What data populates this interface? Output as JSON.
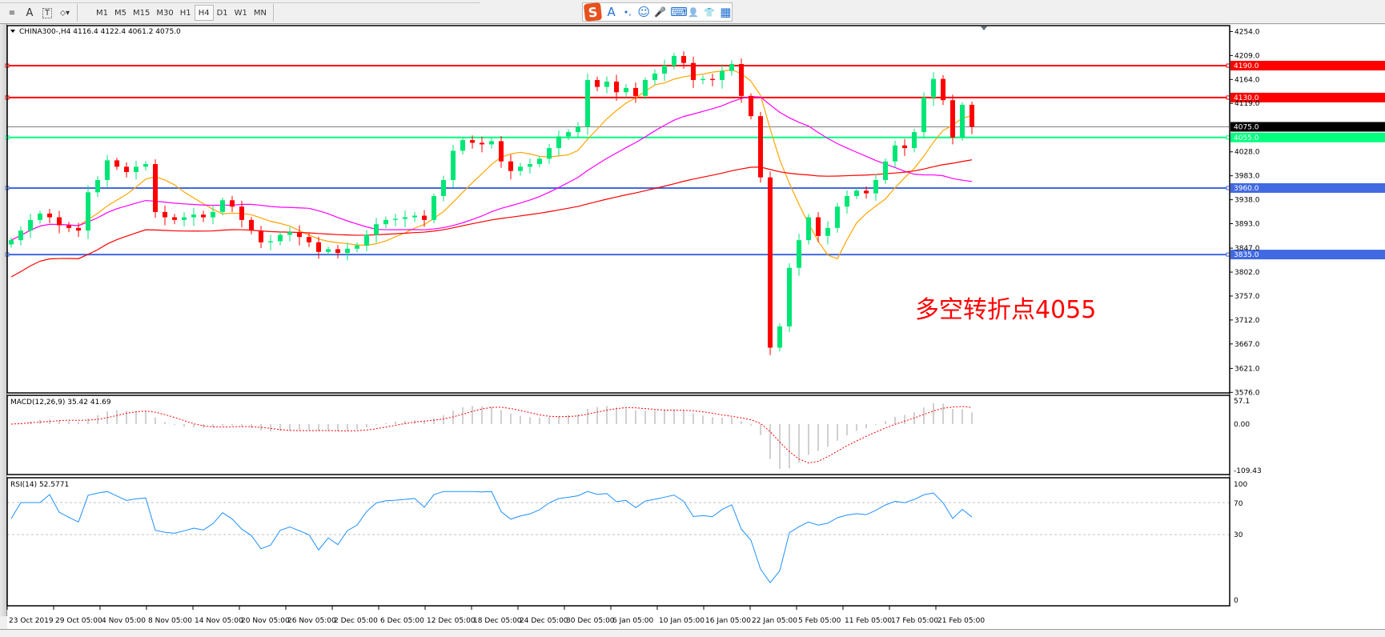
{
  "toolbar": {
    "tools": [
      {
        "name": "fibo-tool",
        "glyph": "≡"
      },
      {
        "name": "text-tool",
        "glyph": "A"
      },
      {
        "name": "text-label-tool",
        "glyph": "T"
      },
      {
        "name": "arrows-tool",
        "glyph": "⬦▾"
      }
    ],
    "timeframes": [
      "M1",
      "M5",
      "M15",
      "M30",
      "H1",
      "H4",
      "D1",
      "W1",
      "MN"
    ],
    "active_timeframe": "H4"
  },
  "ime_bar": {
    "logo": "S",
    "icons": [
      {
        "name": "chinese-mode-icon",
        "glyph": "A"
      },
      {
        "name": "punctuation-icon",
        "glyph": "•,"
      },
      {
        "name": "emoji-icon",
        "glyph": "☺"
      },
      {
        "name": "microphone-icon",
        "glyph": "🎤"
      },
      {
        "name": "keyboard-icon",
        "glyph": "⌨"
      },
      {
        "name": "user-icon",
        "glyph": "👤"
      },
      {
        "name": "skin-icon",
        "glyph": "👕"
      },
      {
        "name": "toolbox-icon",
        "glyph": "▦"
      }
    ]
  },
  "chart": {
    "header": "CHINA300-,H4  4116.4 4122.4 4061.2 4075.0",
    "annotation": "多空转折点4055",
    "annotation_color": "#ff0000"
  },
  "chart_data": {
    "type": "candlestick",
    "symbol": "CHINA300-",
    "timeframe": "H4",
    "last_ohlc": {
      "open": 4116.4,
      "high": 4122.4,
      "low": 4061.2,
      "close": 4075.0
    },
    "closes": [
      3862,
      3880,
      3900,
      3912,
      3905,
      3890,
      3885,
      3880,
      3952,
      3975,
      4012,
      4000,
      3990,
      4000,
      4005,
      3915,
      3905,
      3900,
      3905,
      3910,
      3905,
      3915,
      3937,
      3925,
      3900,
      3880,
      3858,
      3860,
      3872,
      3877,
      3868,
      3858,
      3840,
      3845,
      3838,
      3846,
      3852,
      3872,
      3892,
      3900,
      3902,
      3905,
      3908,
      3900,
      3945,
      3975,
      4030,
      4050,
      4045,
      4042,
      4048,
      4010,
      3992,
      4000,
      4005,
      4015,
      4035,
      4057,
      4065,
      4075,
      4163,
      4150,
      4160,
      4140,
      4148,
      4133,
      4163,
      4175,
      4190,
      4208,
      4195,
      4163,
      4165,
      4163,
      4180,
      4193,
      4133,
      4095,
      3980,
      3660,
      3700,
      3810,
      3862,
      3905,
      3870,
      3885,
      3925,
      3945,
      3955,
      3950,
      3975,
      4010,
      4040,
      4035,
      4065,
      4130,
      4165,
      4125,
      4055,
      4116.4,
      4075
    ],
    "price_axis": {
      "min": 3576.0,
      "max": 4254.0,
      "ticks": [
        "4254.0",
        "4209.0",
        "4164.0",
        "4119.0",
        "4028.0",
        "3983.0",
        "3938.0",
        "3893.0",
        "3847.0",
        "3802.0",
        "3757.0",
        "3712.0",
        "3667.0",
        "3621.0",
        "3576.0"
      ]
    },
    "time_axis": [
      "23 Oct 2019",
      "29 Oct 05:00",
      "4 Nov 05:00",
      "8 Nov 05:00",
      "14 Nov 05:00",
      "20 Nov 05:00",
      "26 Nov 05:00",
      "2 Dec 05:00",
      "6 Dec 05:00",
      "12 Dec 05:00",
      "18 Dec 05:00",
      "24 Dec 05:00",
      "30 Dec 05:00",
      "6 Jan 05:00",
      "10 Jan 05:00",
      "16 Jan 05:00",
      "22 Jan 05:00",
      "5 Feb 05:00",
      "11 Feb 05:00",
      "17 Feb 05:00",
      "21 Feb 05:00"
    ],
    "horizontal_lines": [
      {
        "price": 4190.0,
        "label": "4190.0",
        "color": "#ff0000"
      },
      {
        "price": 4130.0,
        "label": "4130.0",
        "color": "#ff0000"
      },
      {
        "price": 4075.0,
        "label": "4075.0",
        "color": "#808080",
        "label_bg": "#000000"
      },
      {
        "price": 4055.0,
        "label": "4055.0",
        "color": "#00ff7f"
      },
      {
        "price": 3960.0,
        "label": "3960.0",
        "color": "#4169e1"
      },
      {
        "price": 3835.0,
        "label": "3835.0",
        "color": "#4169e1"
      }
    ],
    "moving_averages": [
      {
        "color": "#ffa500"
      },
      {
        "color": "#ff00ff"
      },
      {
        "color": "#ff0000"
      }
    ],
    "bull_color": "#00e676",
    "bear_color": "#ff0000",
    "macd": {
      "label": "MACD(12,26,9) 35.42 41.69",
      "max": "57.1",
      "zero": "0.00",
      "min": "-109.43",
      "histogram_color": "#c0c0c0",
      "signal_color": "#ff0000"
    },
    "rsi": {
      "label": "RSI(14) 52.5771",
      "levels": [
        "100",
        "70",
        "30",
        "0"
      ],
      "color": "#1e90ff"
    }
  }
}
